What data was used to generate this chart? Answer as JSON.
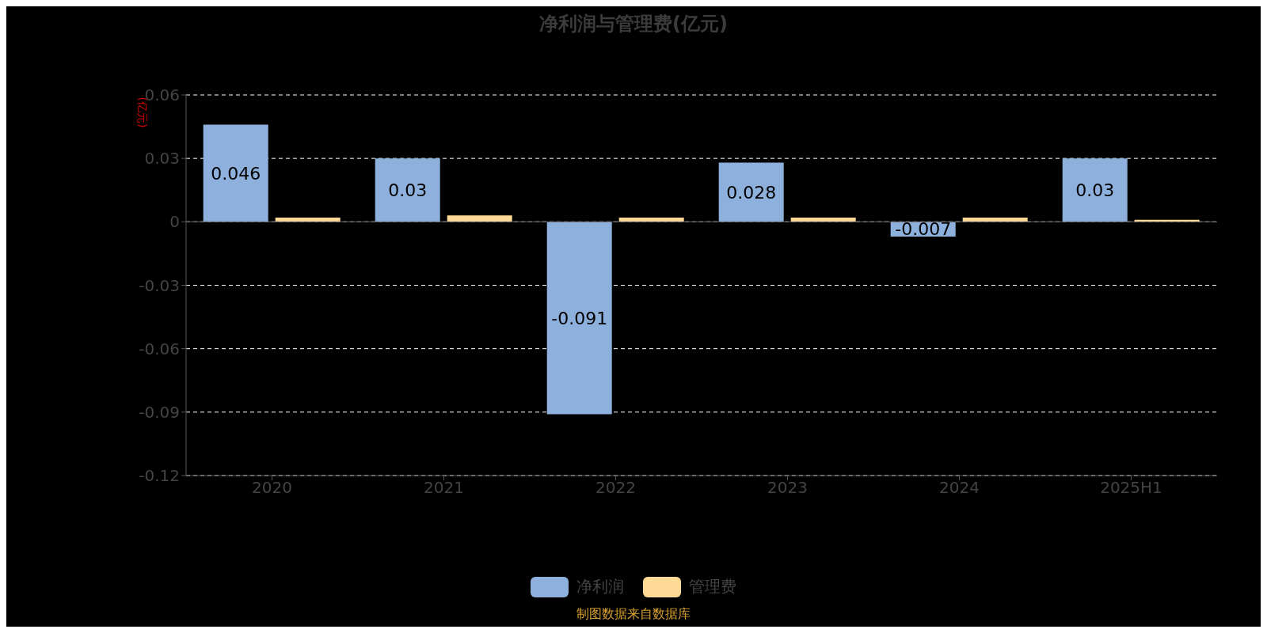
{
  "chart_data": {
    "type": "bar",
    "title": "净利润与管理费(亿元)",
    "ylabel": "(亿元)",
    "categories": [
      "2020",
      "2021",
      "2022",
      "2023",
      "2024",
      "2025H1"
    ],
    "series": [
      {
        "name": "净利润",
        "color": "#8eb0dc",
        "values": [
          0.046,
          0.03,
          -0.091,
          0.028,
          -0.007,
          0.03
        ],
        "value_labels": [
          "0.046",
          "0.03",
          "-0.091",
          "0.028",
          "-0.007",
          "0.03"
        ]
      },
      {
        "name": "管理费",
        "color": "#ffd996",
        "values": [
          0.002,
          0.003,
          0.002,
          0.002,
          0.002,
          0.001
        ]
      }
    ],
    "ylim": [
      -0.12,
      0.06
    ],
    "yticks": [
      -0.12,
      -0.09,
      -0.06,
      -0.03,
      0,
      0.03,
      0.06
    ],
    "grid": "y",
    "legend": "bottom",
    "annotations": [
      "制图数据来自数据库"
    ]
  }
}
